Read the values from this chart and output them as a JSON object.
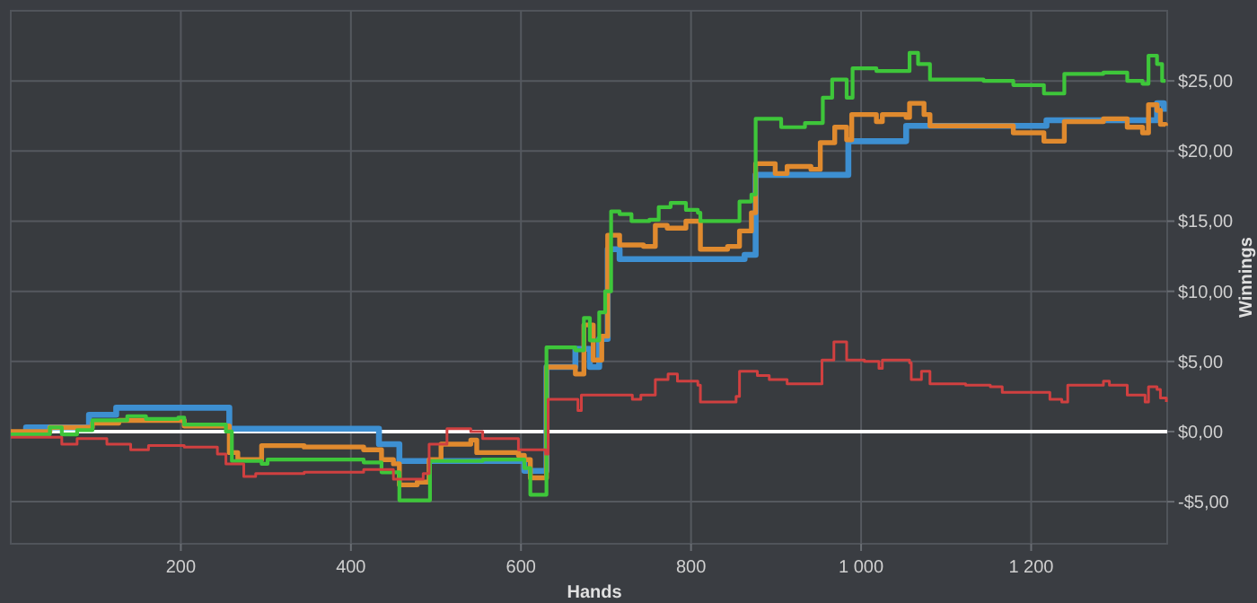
{
  "chart_data": {
    "type": "step",
    "xlabel": "Hands",
    "ylabel": "Winnings",
    "xlim": [
      0,
      1360
    ],
    "ylim": [
      -8,
      30
    ],
    "xticks": [
      200,
      400,
      600,
      800,
      {
        "value": 1000,
        "label": "1 000"
      },
      {
        "value": 1200,
        "label": "1 200"
      }
    ],
    "yticks": [
      {
        "value": -5,
        "label": "-$5,00"
      },
      {
        "value": 0,
        "label": "$0,00"
      },
      {
        "value": 5,
        "label": "$5,00"
      },
      {
        "value": 10,
        "label": "$10,00"
      },
      {
        "value": 15,
        "label": "$15,00"
      },
      {
        "value": 20,
        "label": "$20,00"
      },
      {
        "value": 25,
        "label": "$25,00"
      }
    ],
    "grid": true,
    "ref_lines": [
      {
        "axis": "y",
        "value": 0,
        "color": "#ffffff"
      }
    ],
    "series": [
      {
        "color": "#3d8fd1",
        "x": [
          0,
          18,
          92,
          124,
          257,
          433,
          457,
          604,
          630,
          664,
          681,
          692,
          702,
          716,
          863,
          876,
          985,
          1053,
          1218,
          1348,
          1356
        ],
        "values": [
          -0.2,
          0.3,
          1.2,
          1.7,
          0.2,
          -0.9,
          -2.1,
          -2.8,
          4.6,
          5.9,
          4.6,
          6.6,
          13.0,
          12.3,
          12.6,
          18.3,
          20.7,
          21.8,
          22.2,
          23.4,
          22.8
        ]
      },
      {
        "color": "#e08a2e",
        "x": [
          0,
          46,
          96,
          127,
          204,
          257,
          267,
          295,
          345,
          415,
          436,
          450,
          457,
          478,
          492,
          506,
          541,
          548,
          597,
          604,
          611,
          630,
          664,
          674,
          685,
          695,
          702,
          716,
          744,
          758,
          772,
          794,
          811,
          843,
          857,
          871,
          876,
          899,
          913,
          941,
          952,
          969,
          983,
          989,
          1018,
          1025,
          1053,
          1057,
          1074,
          1081,
          1144,
          1179,
          1215,
          1239,
          1285,
          1313,
          1331,
          1338,
          1348,
          1352,
          1358
        ],
        "values": [
          0.0,
          0.3,
          0.6,
          0.8,
          0.4,
          -1.5,
          -2.0,
          -1.0,
          -1.1,
          -1.3,
          -2.0,
          -2.3,
          -3.8,
          -3.6,
          -2.0,
          -0.9,
          -0.6,
          -1.5,
          -1.7,
          -2.0,
          -3.3,
          4.6,
          4.1,
          7.6,
          5.1,
          6.8,
          14.0,
          13.3,
          13.2,
          14.7,
          14.5,
          15.0,
          13.0,
          13.2,
          14.3,
          15.6,
          19.1,
          18.4,
          18.9,
          18.7,
          20.6,
          21.7,
          20.8,
          22.6,
          22.1,
          22.6,
          22.4,
          23.4,
          22.6,
          21.8,
          21.8,
          21.3,
          20.7,
          22.1,
          22.3,
          21.7,
          21.3,
          23.3,
          22.9,
          21.9,
          21.8
        ]
      },
      {
        "color": "#3ec63a",
        "x": [
          0,
          46,
          60,
          78,
          96,
          127,
          137,
          159,
          197,
          204,
          253,
          260,
          295,
          302,
          415,
          436,
          457,
          493,
          555,
          604,
          611,
          630,
          664,
          674,
          681,
          692,
          699,
          706,
          716,
          730,
          751,
          762,
          776,
          794,
          808,
          811,
          843,
          857,
          871,
          876,
          906,
          934,
          948,
          955,
          966,
          983,
          990,
          1018,
          1053,
          1057,
          1067,
          1081,
          1144,
          1179,
          1215,
          1239,
          1285,
          1313,
          1331,
          1338,
          1348,
          1354,
          1358
        ],
        "values": [
          -0.2,
          0.3,
          -0.2,
          0.1,
          0.8,
          0.8,
          1.1,
          0.9,
          1.0,
          0.5,
          0.0,
          -2.1,
          -2.3,
          -2.0,
          -2.2,
          -2.9,
          -4.9,
          -2.1,
          -2.0,
          -2.6,
          -4.5,
          6.0,
          5.8,
          8.1,
          6.5,
          8.5,
          10.0,
          15.7,
          15.5,
          15.0,
          15.1,
          16.0,
          16.3,
          15.8,
          15.6,
          15.0,
          15.0,
          16.4,
          16.9,
          22.3,
          21.7,
          22.0,
          22.0,
          23.8,
          25.1,
          23.8,
          25.9,
          25.7,
          25.7,
          27.0,
          26.2,
          25.1,
          25.0,
          24.7,
          24.1,
          25.5,
          25.6,
          25.0,
          24.8,
          26.8,
          26.2,
          25.0,
          25.0
        ]
      },
      {
        "color": "#d04040",
        "x": [
          0,
          60,
          78,
          113,
          141,
          162,
          204,
          243,
          253,
          274,
          288,
          345,
          415,
          450,
          485,
          492,
          513,
          541,
          555,
          597,
          629,
          632,
          667,
          671,
          731,
          741,
          758,
          773,
          784,
          808,
          811,
          853,
          857,
          878,
          892,
          913,
          952,
          954,
          968,
          983,
          1004,
          1021,
          1025,
          1057,
          1059,
          1071,
          1081,
          1123,
          1152,
          1166,
          1222,
          1236,
          1243,
          1285,
          1292,
          1313,
          1334,
          1338,
          1348,
          1352,
          1359
        ],
        "values": [
          -0.4,
          -0.9,
          -0.5,
          -0.9,
          -1.3,
          -1.0,
          -1.1,
          -1.6,
          -2.3,
          -3.2,
          -3.0,
          -2.9,
          -2.7,
          -3.4,
          -3.0,
          -0.9,
          0.2,
          0.0,
          -0.5,
          -1.3,
          -1.6,
          2.3,
          1.5,
          2.6,
          2.3,
          2.6,
          3.7,
          4.1,
          3.6,
          3.3,
          2.1,
          2.5,
          4.3,
          4.0,
          3.7,
          3.4,
          3.4,
          5.1,
          6.4,
          5.1,
          5.0,
          4.5,
          5.1,
          4.9,
          3.7,
          4.3,
          3.4,
          3.3,
          3.2,
          2.8,
          2.3,
          2.1,
          3.3,
          3.6,
          3.3,
          2.6,
          2.1,
          3.2,
          3.0,
          2.4,
          2.1
        ]
      }
    ]
  }
}
